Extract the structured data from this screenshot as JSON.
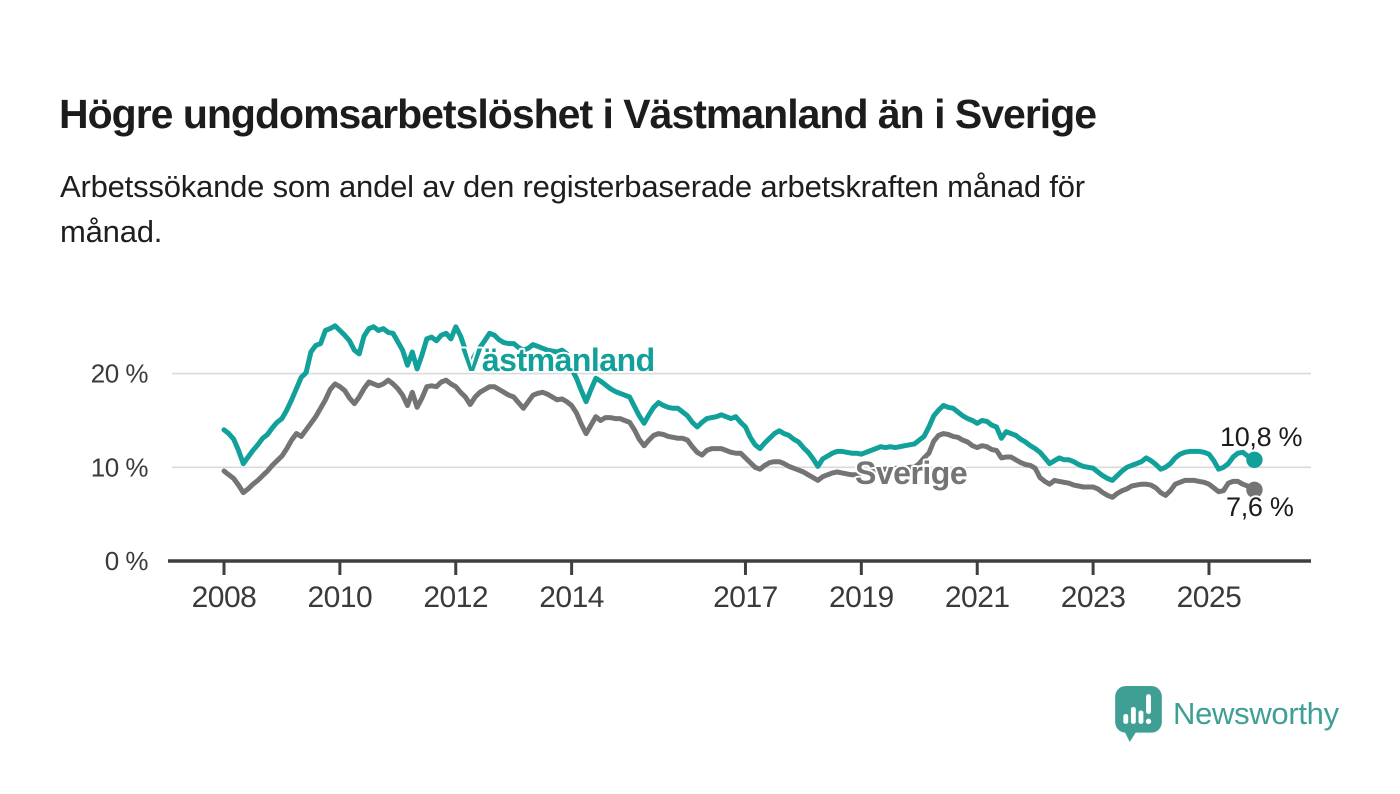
{
  "header": {
    "title": "Högre ungdomsarbetslöshet i Västmanland än i Sverige",
    "subtitle_lines": [
      "Arbetssökande som andel av den registerbaserade arbetskraften månad för",
      "månad."
    ]
  },
  "chart_data": {
    "type": "line",
    "title": "Högre ungdomsarbetslöshet i Västmanland än i Sverige",
    "subtitle": "Arbetssökande som andel av den registerbaserade arbetskraften månad för månad.",
    "x_axis": {
      "start_year": 2008,
      "start_month": 1,
      "frequency": "monthly",
      "end_label_period": "2025",
      "tick_years": [
        2008,
        2010,
        2012,
        2014,
        2017,
        2019,
        2021,
        2023,
        2025
      ]
    },
    "y_axis": {
      "unit": "%",
      "ylim": [
        0,
        27
      ],
      "ticks": [
        {
          "value": 0,
          "label": "0 %"
        },
        {
          "value": 10,
          "label": "10 %"
        },
        {
          "value": 20,
          "label": "20 %"
        }
      ]
    },
    "grid": "horizontal",
    "legend_position": "inline-labels",
    "series": [
      {
        "name": "Västmanland",
        "color": "#12a09a",
        "end_label": "10,8 %",
        "end_value": 10.8,
        "values": [
          14.0,
          13.6,
          13.0,
          11.8,
          10.4,
          11.1,
          11.8,
          12.4,
          13.1,
          13.5,
          14.2,
          14.8,
          15.2,
          16.1,
          17.2,
          18.4,
          19.6,
          20.1,
          22.3,
          23.0,
          23.2,
          24.6,
          24.8,
          25.1,
          24.6,
          24.1,
          23.5,
          22.5,
          22.1,
          24.0,
          24.8,
          25.0,
          24.6,
          24.8,
          24.4,
          24.3,
          23.4,
          22.5,
          20.9,
          22.3,
          20.5,
          22.0,
          23.7,
          23.9,
          23.5,
          24.1,
          24.3,
          23.7,
          25.0,
          24.0,
          22.5,
          21.0,
          22.0,
          22.8,
          23.5,
          24.3,
          24.1,
          23.6,
          23.3,
          23.2,
          23.2,
          22.8,
          22.5,
          22.7,
          23.1,
          22.9,
          22.7,
          22.5,
          22.4,
          22.3,
          22.5,
          22.1,
          20.5,
          19.5,
          18.2,
          17.0,
          18.3,
          19.5,
          19.2,
          18.8,
          18.4,
          18.1,
          17.9,
          17.7,
          17.5,
          16.5,
          15.5,
          14.7,
          15.6,
          16.4,
          16.9,
          16.6,
          16.4,
          16.3,
          16.3,
          15.9,
          15.5,
          14.8,
          14.3,
          14.8,
          15.2,
          15.3,
          15.4,
          15.6,
          15.4,
          15.2,
          15.4,
          14.8,
          14.3,
          13.2,
          12.4,
          12.0,
          12.6,
          13.1,
          13.6,
          13.9,
          13.6,
          13.4,
          13.0,
          12.7,
          12.1,
          11.6,
          10.9,
          10.1,
          10.9,
          11.2,
          11.5,
          11.7,
          11.7,
          11.6,
          11.5,
          11.5,
          11.4,
          11.6,
          11.8,
          12.0,
          12.2,
          12.1,
          12.2,
          12.1,
          12.2,
          12.3,
          12.4,
          12.5,
          12.9,
          13.3,
          14.3,
          15.5,
          16.1,
          16.6,
          16.4,
          16.3,
          15.9,
          15.5,
          15.2,
          15.0,
          14.7,
          15.0,
          14.9,
          14.5,
          14.3,
          13.1,
          13.8,
          13.6,
          13.4,
          13.0,
          12.7,
          12.3,
          12.0,
          11.6,
          11.0,
          10.4,
          10.7,
          11.0,
          10.8,
          10.8,
          10.6,
          10.3,
          10.1,
          10.0,
          9.9,
          9.5,
          9.1,
          8.8,
          8.6,
          9.1,
          9.6,
          10.0,
          10.2,
          10.4,
          10.6,
          11.0,
          10.7,
          10.3,
          9.8,
          10.0,
          10.4,
          11.0,
          11.4,
          11.6,
          11.7,
          11.7,
          11.7,
          11.6,
          11.4,
          10.7,
          9.8,
          10.0,
          10.4,
          11.1,
          11.5,
          11.6,
          11.2,
          10.8
        ]
      },
      {
        "name": "Sverige",
        "color": "#747474",
        "end_label": "7,6 %",
        "end_value": 7.6,
        "values": [
          9.6,
          9.2,
          8.8,
          8.1,
          7.3,
          7.7,
          8.2,
          8.6,
          9.1,
          9.6,
          10.2,
          10.7,
          11.2,
          12.0,
          12.9,
          13.6,
          13.3,
          14.0,
          14.7,
          15.4,
          16.3,
          17.2,
          18.3,
          18.9,
          18.6,
          18.2,
          17.4,
          16.8,
          17.5,
          18.4,
          19.1,
          18.9,
          18.7,
          18.9,
          19.3,
          18.9,
          18.4,
          17.7,
          16.6,
          18.0,
          16.4,
          17.4,
          18.6,
          18.7,
          18.6,
          19.1,
          19.3,
          18.9,
          18.6,
          18.0,
          17.5,
          16.7,
          17.5,
          18.0,
          18.3,
          18.6,
          18.6,
          18.3,
          18.0,
          17.7,
          17.5,
          16.9,
          16.3,
          17.0,
          17.7,
          17.9,
          18.0,
          17.8,
          17.5,
          17.2,
          17.3,
          17.0,
          16.6,
          15.8,
          14.6,
          13.6,
          14.5,
          15.4,
          15.0,
          15.3,
          15.3,
          15.2,
          15.2,
          15.0,
          14.8,
          14.0,
          13.0,
          12.3,
          12.9,
          13.4,
          13.6,
          13.5,
          13.3,
          13.2,
          13.1,
          13.1,
          12.9,
          12.2,
          11.6,
          11.3,
          11.8,
          12.0,
          12.0,
          12.0,
          11.8,
          11.6,
          11.5,
          11.5,
          11.0,
          10.5,
          10.0,
          9.8,
          10.2,
          10.5,
          10.6,
          10.6,
          10.4,
          10.1,
          9.9,
          9.7,
          9.5,
          9.2,
          8.9,
          8.6,
          9.0,
          9.2,
          9.4,
          9.5,
          9.4,
          9.3,
          9.2,
          9.2,
          9.4,
          9.5,
          9.6,
          9.7,
          9.8,
          9.8,
          9.9,
          9.9,
          9.9,
          9.9,
          10.0,
          10.0,
          10.4,
          11.0,
          11.5,
          12.8,
          13.4,
          13.6,
          13.5,
          13.3,
          13.2,
          12.9,
          12.7,
          12.3,
          12.1,
          12.3,
          12.2,
          11.9,
          11.8,
          11.0,
          11.1,
          11.1,
          10.8,
          10.5,
          10.3,
          10.2,
          9.9,
          8.9,
          8.5,
          8.2,
          8.6,
          8.5,
          8.4,
          8.3,
          8.1,
          8.0,
          7.9,
          7.9,
          7.9,
          7.7,
          7.3,
          7.0,
          6.8,
          7.2,
          7.5,
          7.7,
          8.0,
          8.1,
          8.2,
          8.2,
          8.1,
          7.8,
          7.3,
          7.0,
          7.5,
          8.2,
          8.4,
          8.6,
          8.6,
          8.6,
          8.5,
          8.4,
          8.2,
          7.8,
          7.4,
          7.5,
          8.3,
          8.5,
          8.5,
          8.2,
          8.0,
          7.6
        ]
      }
    ],
    "colors": {
      "accent_teal": "#12a09a",
      "series_gray": "#747474",
      "axis": "#3f3f3f",
      "gridline": "#dadada",
      "text": "#1c1c1c"
    }
  },
  "footer": {
    "brand": "Newsworthy",
    "brand_color": "#3f9f95",
    "logo_icon": "speech-bubble-bar-chart-icon"
  }
}
